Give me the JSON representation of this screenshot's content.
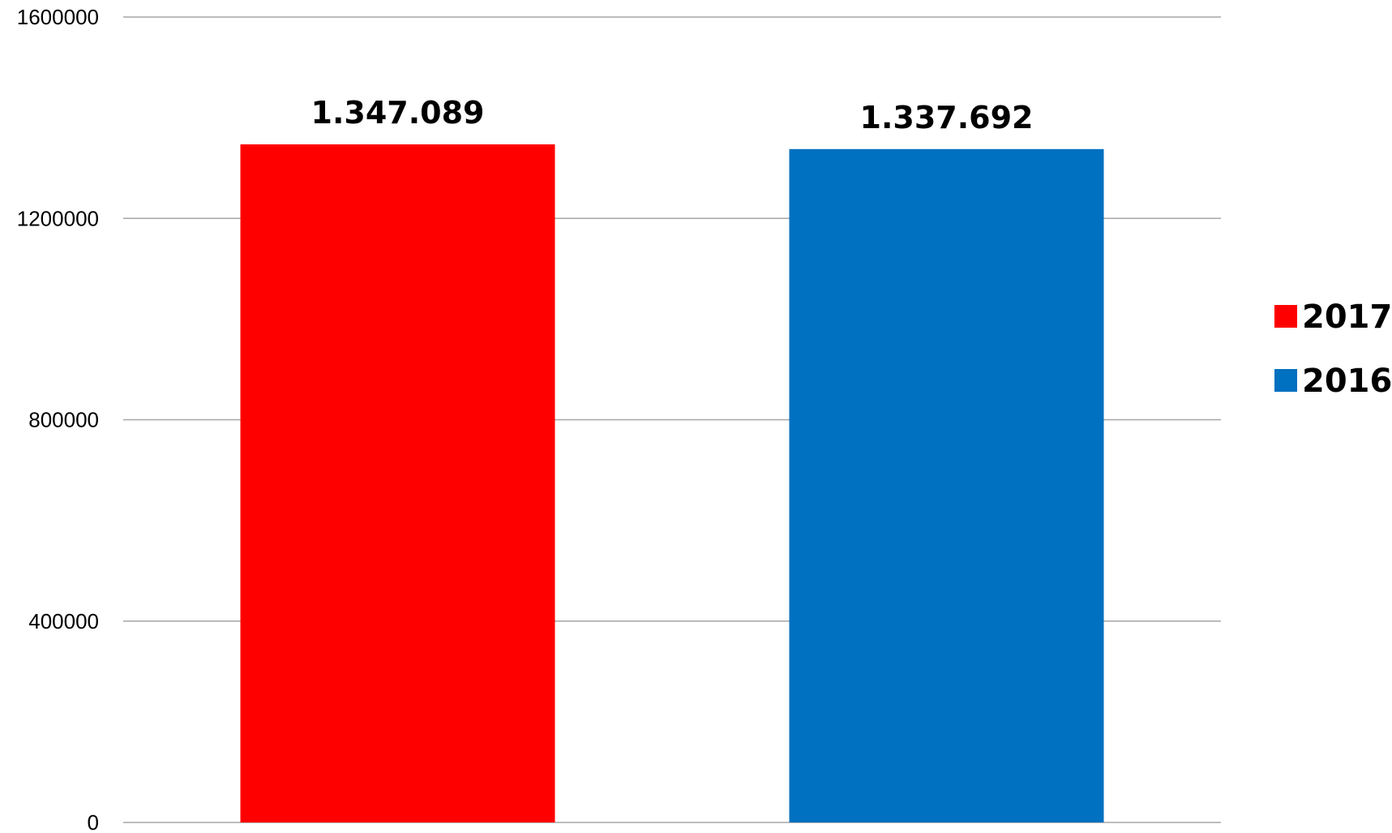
{
  "chart_data": {
    "type": "bar",
    "categories": [
      "2017",
      "2016"
    ],
    "values": [
      1347089,
      1337692
    ],
    "data_labels": [
      "1.347.089",
      "1.337.692"
    ],
    "colors": [
      "#ff0000",
      "#0070c0"
    ],
    "ylim": [
      0,
      1600000
    ],
    "yticks": [
      0,
      400000,
      800000,
      1200000,
      1600000
    ],
    "ytick_labels": [
      "0",
      "400000",
      "800000",
      "1200000",
      "1600000"
    ],
    "grid": true,
    "legend": {
      "position": "right",
      "entries": [
        {
          "label": "2017",
          "color": "#ff0000"
        },
        {
          "label": "2016",
          "color": "#0070c0"
        }
      ]
    }
  }
}
